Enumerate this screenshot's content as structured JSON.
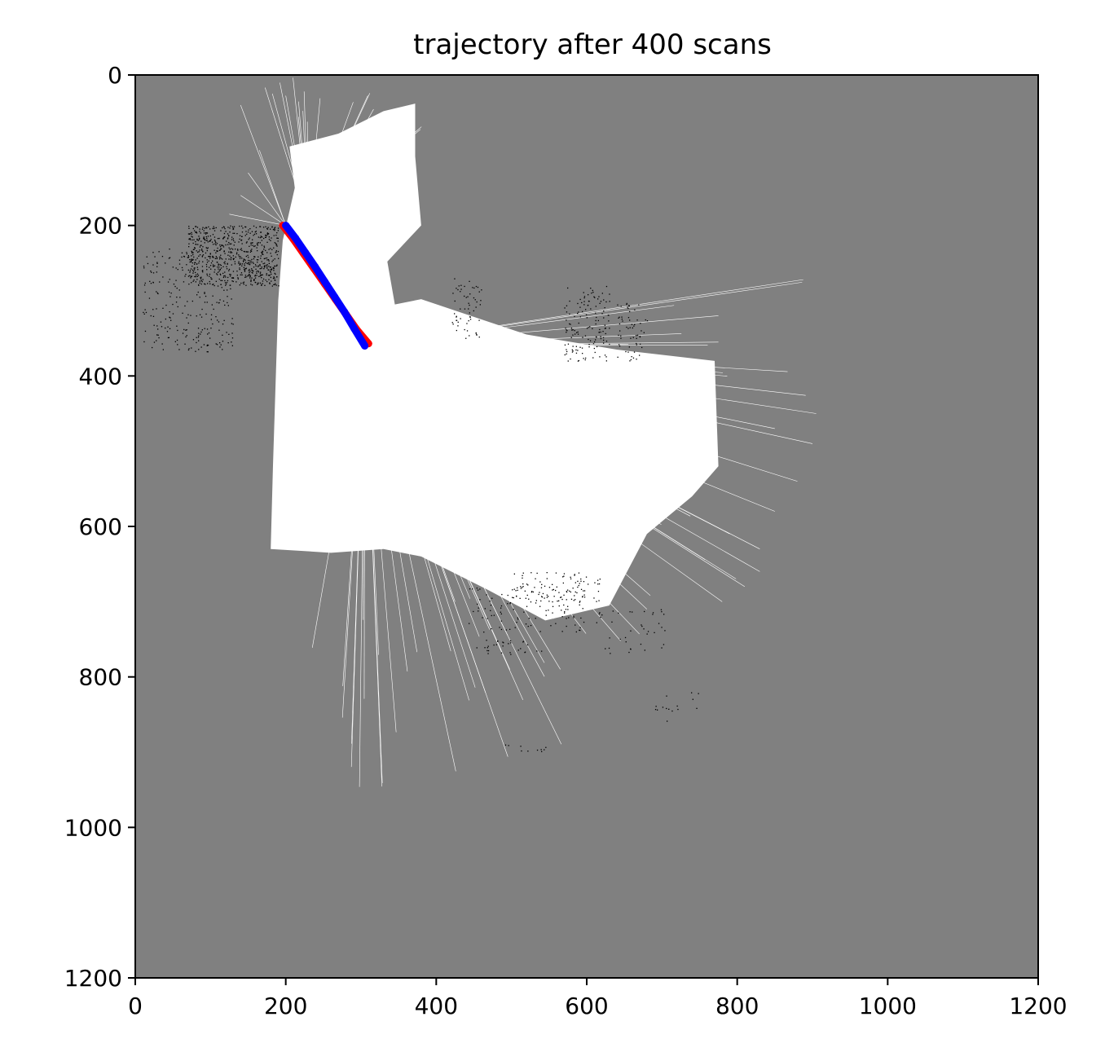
{
  "chart_data": {
    "type": "scatter",
    "title": "trajectory after 400 scans",
    "xlabel": "",
    "ylabel": "",
    "xlim": [
      0,
      1200
    ],
    "ylim": [
      1200,
      0
    ],
    "x_ticks": [
      0,
      200,
      400,
      600,
      800,
      1000,
      1200
    ],
    "y_ticks": [
      0,
      200,
      400,
      600,
      800,
      1000,
      1200
    ],
    "grid": false,
    "background_color": "#808080",
    "free_space_color": "#ffffff",
    "occupied_color": "#000000",
    "series": [
      {
        "color": "#ff0000",
        "x": [
          196,
          210,
          224,
          238,
          252,
          266,
          280,
          294,
          310
        ],
        "y": [
          200,
          218,
          238,
          258,
          278,
          298,
          318,
          338,
          357
        ]
      },
      {
        "color": "#0000ff",
        "x": [
          200,
          213,
          226,
          239,
          252,
          265,
          278,
          291,
          305
        ],
        "y": [
          200,
          217,
          236,
          255,
          275,
          295,
          315,
          337,
          360
        ]
      }
    ]
  }
}
